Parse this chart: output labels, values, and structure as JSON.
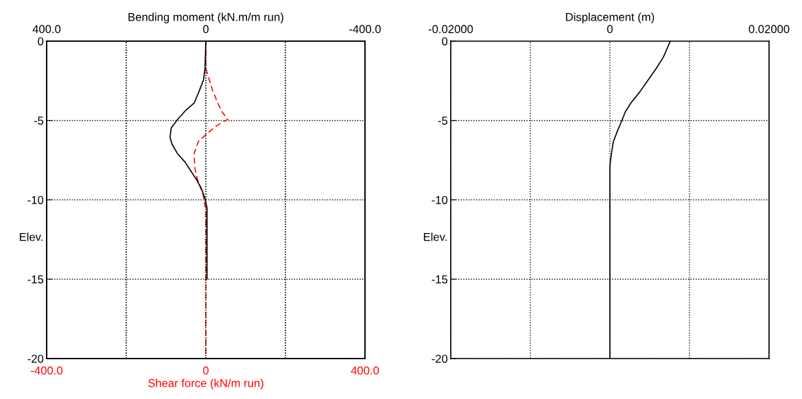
{
  "chart_data": [
    {
      "type": "line",
      "xlabel": "Shear force (kN/m run)",
      "x2label": "Bending moment (kN.m/m run)",
      "ylabel": "Elev.",
      "xlim": [
        -400,
        400
      ],
      "xticks": [
        {
          "value": -400,
          "label": "-400.0"
        },
        {
          "value": -200,
          "label": null
        },
        0,
        {
          "value": 200,
          "label": null
        },
        {
          "value": 400,
          "label": "400.0"
        }
      ],
      "x2lim": [
        400,
        -400
      ],
      "x2ticks": [
        {
          "value": 400,
          "label": "400.0"
        },
        {
          "value": 200,
          "label": null
        },
        0,
        {
          "value": -200,
          "label": null
        },
        {
          "value": -400,
          "label": "-400.0"
        }
      ],
      "ylim": [
        -20,
        0
      ],
      "yticks": [
        0,
        -5,
        -10,
        -15,
        -20
      ],
      "grid": true,
      "series": [
        {
          "axis": "x2",
          "color": "#000000",
          "line_style": "solid",
          "x": [
            0,
            2,
            6,
            17,
            29,
            49,
            72,
            87,
            90,
            85,
            72,
            52,
            37,
            22,
            10,
            2,
            -3,
            -3
          ],
          "values": [
            0,
            -1.73,
            -2.45,
            -3.17,
            -3.89,
            -4.32,
            -4.97,
            -5.47,
            -6.05,
            -6.48,
            -7.06,
            -7.63,
            -8.21,
            -8.78,
            -9.36,
            -9.94,
            -10.5,
            -15
          ]
        },
        {
          "color": "#ff0000",
          "line_style": "dashed",
          "x": [
            0,
            0,
            9,
            18,
            30,
            41,
            55,
            27,
            0,
            -19,
            -29,
            -28,
            -22,
            -7,
            -1,
            0,
            0
          ],
          "values": [
            0,
            -1.73,
            -2.45,
            -3.17,
            -3.89,
            -4.46,
            -4.93,
            -5.33,
            -5.9,
            -6.33,
            -7.06,
            -7.92,
            -8.64,
            -9.65,
            -10.5,
            -11,
            -20
          ]
        }
      ]
    },
    {
      "type": "line",
      "xlabel": "Displacement (m)",
      "ylabel": "Elev.",
      "xlim": [
        -0.02,
        0.02
      ],
      "xticks": [
        {
          "value": -0.02,
          "label": "-0.02000"
        },
        {
          "value": -0.01,
          "label": null
        },
        0,
        {
          "value": 0.01,
          "label": null
        },
        {
          "value": 0.02,
          "label": "0.02000"
        }
      ],
      "ylim": [
        -20,
        0
      ],
      "yticks": [
        0,
        -5,
        -10,
        -15,
        -20
      ],
      "grid": true,
      "series": [
        {
          "color": "#000000",
          "line_style": "solid",
          "x": [
            0.00759,
            0.00672,
            0.00581,
            0.0048,
            0.0038,
            0.00265,
            0.00193,
            0.0015,
            0.00098,
            0.00043,
            0.0002,
            5e-05,
            0,
            0
          ],
          "values": [
            0,
            -1.01,
            -1.73,
            -2.45,
            -3.17,
            -3.89,
            -4.46,
            -5.01,
            -5.62,
            -6.34,
            -7.06,
            -7.63,
            -8,
            -20
          ]
        }
      ]
    }
  ]
}
